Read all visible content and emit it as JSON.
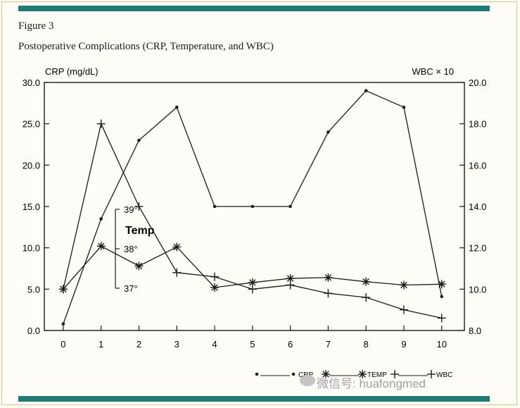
{
  "colors": {
    "band": "#1f7c74",
    "ink": "#1a1a1a"
  },
  "figure_label": "Figure 3",
  "figure_title": "Postoperative Complications (CRP, Temperature, and WBC)",
  "watermark": "微信号: huafongmed",
  "chart_data": {
    "type": "line",
    "title": "Postoperative Complications (CRP, Temperature, and WBC)",
    "xlabel": "",
    "ylabel": "CRP (mg/dL)",
    "y2label": "WBC × 10",
    "x": [
      0,
      1,
      2,
      3,
      4,
      5,
      6,
      7,
      8,
      9,
      10
    ],
    "xlim": [
      -0.5,
      10.6
    ],
    "ylim": [
      0,
      30
    ],
    "y2lim": [
      8,
      20
    ],
    "yticks": [
      "0.0",
      "5.0",
      "10.0",
      "15.0",
      "20.0",
      "25.0",
      "30.0"
    ],
    "y2ticks": [
      "8.0",
      "10.0",
      "12.0",
      "14.0",
      "16.0",
      "18.0",
      "20.0"
    ],
    "xticks": [
      "0",
      "1",
      "2",
      "3",
      "4",
      "5",
      "6",
      "7",
      "8",
      "9",
      "10"
    ],
    "temp_axis": {
      "label": "Temp",
      "ticks": [
        "39°",
        "38°",
        "37°"
      ],
      "values": [
        39,
        38,
        37
      ]
    },
    "series": [
      {
        "name": "CRP",
        "axis": "left",
        "marker": "dot",
        "values": [
          0.8,
          13.5,
          23.0,
          27.0,
          15.0,
          15.0,
          15.0,
          24.0,
          29.0,
          27.0,
          4.1
        ]
      },
      {
        "name": "TEMP",
        "axis": "left",
        "marker": "asterisk",
        "values": [
          5.0,
          10.2,
          7.8,
          10.1,
          5.2,
          5.8,
          6.3,
          6.4,
          5.9,
          5.5,
          5.6
        ]
      },
      {
        "name": "WBC",
        "axis": "right",
        "marker": "plus",
        "values": [
          10.0,
          18.0,
          14.0,
          10.8,
          10.6,
          10.0,
          10.2,
          9.8,
          9.6,
          9.0,
          8.6
        ]
      }
    ],
    "legend": {
      "position": "bottom-right",
      "entries": [
        "CRP",
        "TEMP",
        "WBC"
      ]
    }
  }
}
